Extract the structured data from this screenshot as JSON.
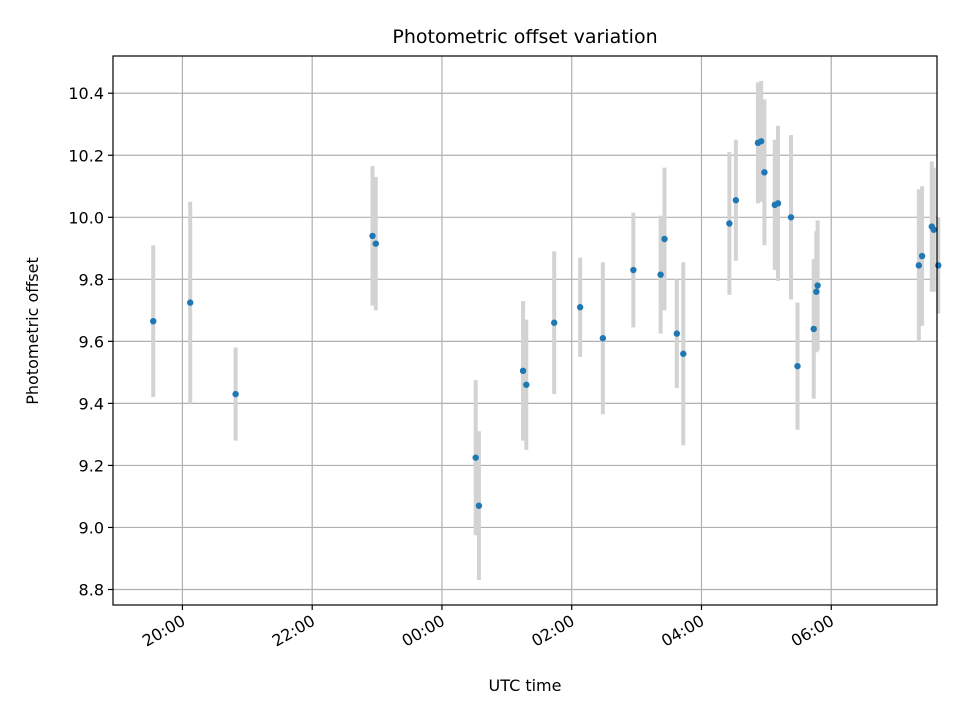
{
  "chart_data": {
    "type": "scatter",
    "title": "Photometric offset variation",
    "xlabel": "UTC time",
    "ylabel": "Photometric offset",
    "x_tick_labels": [
      "20:00",
      "22:00",
      "00:00",
      "02:00",
      "04:00",
      "06:00"
    ],
    "x_tick_hours": [
      20,
      22,
      24,
      26,
      28,
      30
    ],
    "xlim_hours": [
      18.93,
      31.63
    ],
    "y_ticks": [
      8.8,
      9.0,
      9.2,
      9.4,
      9.6,
      9.8,
      10.0,
      10.2,
      10.4
    ],
    "y_tick_labels": [
      "8.8",
      "9.0",
      "9.2",
      "9.4",
      "9.6",
      "9.8",
      "10.0",
      "10.2",
      "10.4"
    ],
    "ylim": [
      8.75,
      10.52
    ],
    "grid": true,
    "point_color": "#1f77b4",
    "errorbar_color": "#d3d3d3",
    "points": [
      {
        "t": 19.55,
        "y": 9.665,
        "err": 0.245
      },
      {
        "t": 20.12,
        "y": 9.725,
        "err": 0.325
      },
      {
        "t": 20.82,
        "y": 9.43,
        "err": 0.15
      },
      {
        "t": 22.93,
        "y": 9.94,
        "err": 0.225
      },
      {
        "t": 22.98,
        "y": 9.915,
        "err": 0.215
      },
      {
        "t": 24.52,
        "y": 9.225,
        "err": 0.25
      },
      {
        "t": 24.57,
        "y": 9.07,
        "err": 0.24
      },
      {
        "t": 25.25,
        "y": 9.505,
        "err": 0.225
      },
      {
        "t": 25.3,
        "y": 9.46,
        "err": 0.21
      },
      {
        "t": 25.73,
        "y": 9.66,
        "err": 0.23
      },
      {
        "t": 26.13,
        "y": 9.71,
        "err": 0.16
      },
      {
        "t": 26.48,
        "y": 9.61,
        "err": 0.245
      },
      {
        "t": 26.95,
        "y": 9.83,
        "err": 0.185
      },
      {
        "t": 27.37,
        "y": 9.815,
        "err": 0.19
      },
      {
        "t": 27.43,
        "y": 9.93,
        "err": 0.23
      },
      {
        "t": 27.62,
        "y": 9.625,
        "err": 0.175
      },
      {
        "t": 27.72,
        "y": 9.56,
        "err": 0.295
      },
      {
        "t": 28.43,
        "y": 9.98,
        "err": 0.23
      },
      {
        "t": 28.53,
        "y": 10.055,
        "err": 0.195
      },
      {
        "t": 28.87,
        "y": 10.24,
        "err": 0.195
      },
      {
        "t": 28.92,
        "y": 10.245,
        "err": 0.195
      },
      {
        "t": 28.97,
        "y": 10.145,
        "err": 0.235
      },
      {
        "t": 29.13,
        "y": 10.04,
        "err": 0.21
      },
      {
        "t": 29.18,
        "y": 10.045,
        "err": 0.25
      },
      {
        "t": 29.38,
        "y": 10.0,
        "err": 0.265
      },
      {
        "t": 29.48,
        "y": 9.52,
        "err": 0.205
      },
      {
        "t": 29.73,
        "y": 9.64,
        "err": 0.225
      },
      {
        "t": 29.77,
        "y": 9.76,
        "err": 0.195
      },
      {
        "t": 29.79,
        "y": 9.78,
        "err": 0.21
      },
      {
        "t": 31.35,
        "y": 9.845,
        "err": 0.245
      },
      {
        "t": 31.4,
        "y": 9.875,
        "err": 0.225
      },
      {
        "t": 31.55,
        "y": 9.97,
        "err": 0.21
      },
      {
        "t": 31.58,
        "y": 9.96,
        "err": 0.2
      },
      {
        "t": 31.65,
        "y": 9.845,
        "err": 0.155
      }
    ]
  }
}
